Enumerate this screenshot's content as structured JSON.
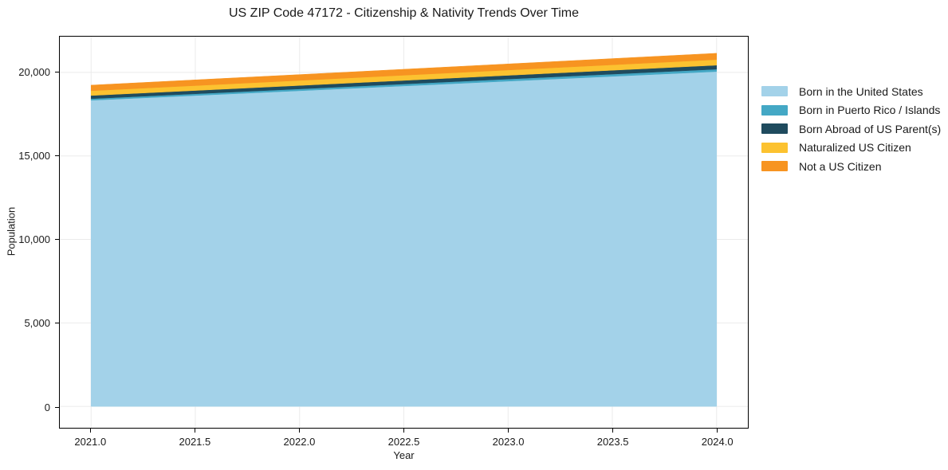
{
  "chart_data": {
    "type": "area",
    "stacked": true,
    "title": "US ZIP Code 47172 - Citizenship & Nativity Trends Over Time",
    "xlabel": "Year",
    "ylabel": "Population",
    "x": [
      2021,
      2022,
      2023,
      2024
    ],
    "series": [
      {
        "name": "Born in the United States",
        "color": "#A3D2E9",
        "values": [
          18330,
          18900,
          19475,
          20050
        ]
      },
      {
        "name": "Born in Puerto Rico / Islands",
        "color": "#44A8C5",
        "values": [
          95,
          110,
          125,
          140
        ]
      },
      {
        "name": "Born Abroad of US Parent(s)",
        "color": "#1F4B5E",
        "values": [
          190,
          206,
          223,
          240
        ]
      },
      {
        "name": "Naturalized US Citizen",
        "color": "#FCC230",
        "values": [
          285,
          302,
          318,
          335
        ]
      },
      {
        "name": "Not a US Citizen",
        "color": "#F79421",
        "values": [
          335,
          350,
          365,
          380
        ]
      }
    ],
    "xlim": [
      2020.85,
      2024.15
    ],
    "ylim": [
      -1280,
      22140
    ],
    "xticks": {
      "values": [
        2021.0,
        2021.5,
        2022.0,
        2022.5,
        2023.0,
        2023.5,
        2024.0
      ],
      "labels": [
        "2021.0",
        "2021.5",
        "2022.0",
        "2022.5",
        "2023.0",
        "2023.5",
        "2024.0"
      ]
    },
    "yticks": {
      "values": [
        0,
        5000,
        10000,
        15000,
        20000
      ],
      "labels": [
        "0",
        "5,000",
        "10,000",
        "15,000",
        "20,000"
      ]
    },
    "grid": true,
    "grid_color": "#ebebeb",
    "legend_position": "right-outside"
  }
}
